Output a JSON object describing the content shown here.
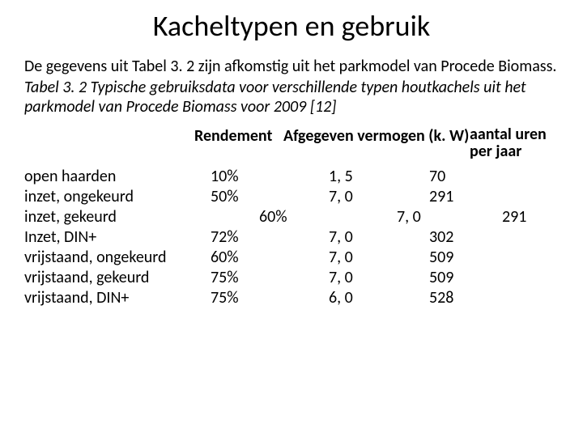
{
  "title": "Kacheltypen en gebruik",
  "intro": "De gegevens uit Tabel 3. 2 zijn afkomstig uit het parkmodel van Procede Biomass.",
  "caption": "Tabel 3. 2 Typische gebruiksdata voor verschillende typen houtkachels uit het parkmodel van Procede Biomass voor 2009 [12]",
  "headers": {
    "col1": "Rendement",
    "col2": "Afgegeven vermogen (k. W)",
    "col3": "aantal uren per jaar"
  },
  "rows": [
    {
      "name": "open haarden",
      "rendement": "10%",
      "power": "1, 5",
      "hours": "70",
      "offset": false
    },
    {
      "name": "inzet, ongekeurd",
      "rendement": "50%",
      "power": "7, 0",
      "hours": "291",
      "offset": false
    },
    {
      "name": "inzet, gekeurd",
      "rendement": "60%",
      "power": "7, 0",
      "hours": "291",
      "offset": true
    },
    {
      "name": "Inzet, DIN+",
      "rendement": "72%",
      "power": "7, 0",
      "hours": "302",
      "offset": false
    },
    {
      "name": "vrijstaand, ongekeurd",
      "rendement": " 60%",
      "power": " 7, 0",
      "hours": "509",
      "offset": false
    },
    {
      "name": "vrijstaand, gekeurd",
      "rendement": " 75%",
      "power": "7, 0",
      "hours": " 509",
      "offset": false
    },
    {
      "name": "vrijstaand, DIN+",
      "rendement": "75%",
      "power": " 6, 0",
      "hours": "528",
      "offset": false
    }
  ]
}
